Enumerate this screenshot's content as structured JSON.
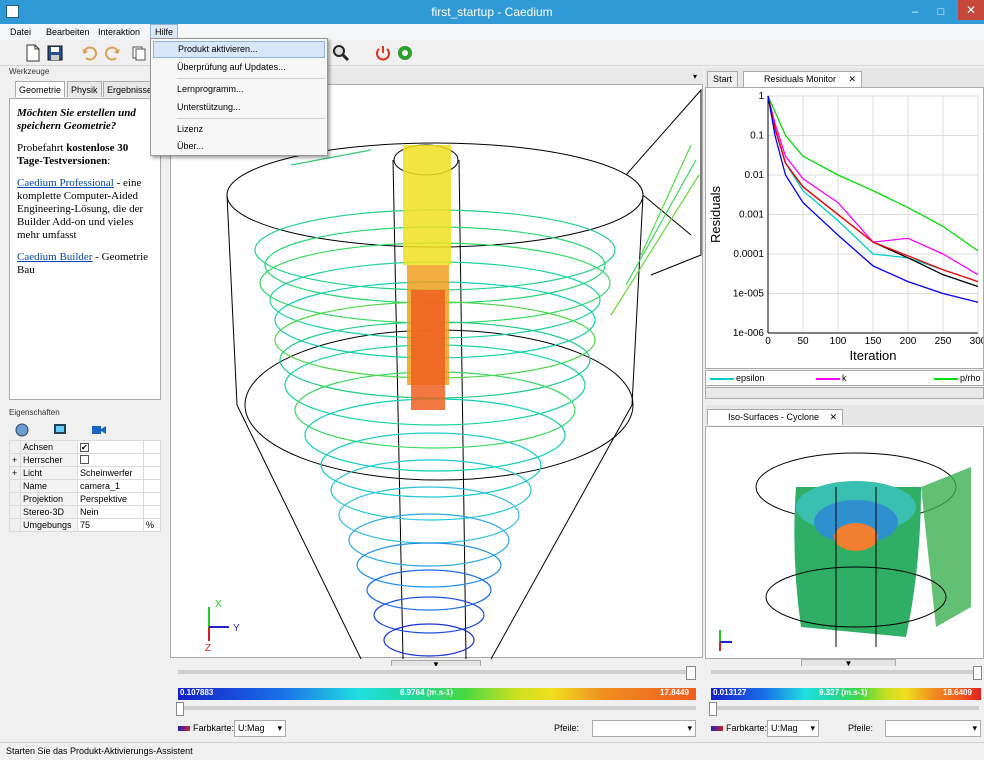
{
  "window": {
    "title": "first_startup - Caedium",
    "close": "✕",
    "minimize": "–",
    "maximize": "□"
  },
  "menu": {
    "items": [
      "Datei",
      "Bearbeiten",
      "Interaktion",
      "Hilfe"
    ]
  },
  "help_menu": {
    "items": [
      "Produkt aktivieren...",
      "Überprüfung auf Updates...",
      "Lernprogramm...",
      "Unterstützung...",
      "Lizenz",
      "Über..."
    ]
  },
  "tools_panel": {
    "title": "Werkzeuge",
    "tabs": [
      "Geometrie",
      "Physik",
      "Ergebnisse"
    ],
    "heading": "Möchten Sie erstellen und speichern Geometrie?",
    "trial_text": "Probefahrt",
    "trial_bold": "kostenlose 30 Tage-Testversionen",
    "trial_suffix": ":",
    "pro_link": "Caedium Professional",
    "pro_desc": " - eine komplette Computer-Aided Engineering-Lösung, die der Builder Add-on und vieles mehr umfasst",
    "builder_link": "Caedium Builder",
    "builder_desc": " - Geometrie Bau"
  },
  "properties_panel": {
    "title": "Eigenschaften",
    "rows": [
      {
        "name": "Achsen",
        "value": "",
        "check": "✔"
      },
      {
        "name": "Herrscher",
        "value": "",
        "check": ""
      },
      {
        "name": "Licht",
        "value": "Scheinwerfer"
      },
      {
        "name": "Name",
        "value": "camera_1"
      },
      {
        "name": "Projektion",
        "value": "Perspektive"
      },
      {
        "name": "Stereo-3D",
        "value": "Nein"
      },
      {
        "name": "Umgebungs",
        "value": "75",
        "unit": "%"
      }
    ]
  },
  "main_view": {
    "colorbar_min": "0.107883",
    "colorbar_mid": "8.9764 (m.s-1)",
    "colorbar_max": "17.8449",
    "colormap_label": "Farbkarte:",
    "colormap_value": "U:Mag",
    "arrows_label": "Pfeile:",
    "axis_x": "X",
    "axis_y": "Y",
    "axis_z": "Z"
  },
  "residuals_panel": {
    "tabs": [
      "Start",
      "Residuals Monitor"
    ],
    "legend": [
      "epsilon",
      "k",
      "p/rho"
    ]
  },
  "chart_data": {
    "type": "line",
    "xlabel": "Iteration",
    "ylabel": "Residuals",
    "xlim": [
      0,
      300
    ],
    "ylim": [
      1e-06,
      1
    ],
    "yscale": "log",
    "x_ticks": [
      "0",
      "50",
      "100",
      "150",
      "200",
      "250",
      "300"
    ],
    "y_ticks": [
      "1e-006",
      "1e-005",
      "0.0001",
      "0.001",
      "0.01",
      "0.1",
      "1"
    ],
    "grid": true,
    "series": [
      {
        "name": "epsilon",
        "color": "#00cccc",
        "x": [
          0,
          10,
          25,
          50,
          100,
          150,
          200,
          250,
          300
        ],
        "y": [
          1,
          0.15,
          0.02,
          0.004,
          0.0007,
          0.0001,
          8e-05,
          4e-05,
          2e-05
        ]
      },
      {
        "name": "k",
        "color": "#ff00ff",
        "x": [
          0,
          10,
          25,
          50,
          100,
          150,
          200,
          250,
          300
        ],
        "y": [
          1,
          0.2,
          0.03,
          0.008,
          0.002,
          0.0002,
          0.00025,
          0.0001,
          3e-05
        ]
      },
      {
        "name": "p/rho",
        "color": "#00dd00",
        "x": [
          0,
          10,
          25,
          50,
          100,
          150,
          200,
          250,
          300
        ],
        "y": [
          1,
          0.4,
          0.1,
          0.03,
          0.01,
          0.004,
          0.0015,
          0.0005,
          0.00012
        ]
      },
      {
        "color": "#000000",
        "x": [
          0,
          10,
          25,
          50,
          100,
          150,
          200,
          250,
          300
        ],
        "y": [
          1,
          0.15,
          0.02,
          0.005,
          0.001,
          0.0002,
          8e-05,
          3e-05,
          1.5e-05
        ]
      },
      {
        "color": "#ff0000",
        "x": [
          0,
          10,
          25,
          50,
          100,
          150,
          200,
          250,
          300
        ],
        "y": [
          1,
          0.15,
          0.02,
          0.005,
          0.001,
          0.0002,
          9e-05,
          4e-05,
          2e-05
        ]
      },
      {
        "color": "#0000ff",
        "x": [
          0,
          10,
          25,
          50,
          100,
          150,
          200,
          250,
          300
        ],
        "y": [
          1,
          0.1,
          0.01,
          0.002,
          0.0003,
          5e-05,
          2e-05,
          1e-05,
          6e-06
        ]
      }
    ]
  },
  "iso_panel": {
    "tab": "Iso-Surfaces - Cyclone",
    "colorbar_min": "0.013127",
    "colorbar_mid": "9.327 (m.s-1)",
    "colorbar_max": "18.6409",
    "colormap_label": "Farbkarte:",
    "colormap_value": "U:Mag",
    "arrows_label": "Pfeile:"
  },
  "status": "Starten Sie das Produkt-Aktivierungs-Assistent"
}
